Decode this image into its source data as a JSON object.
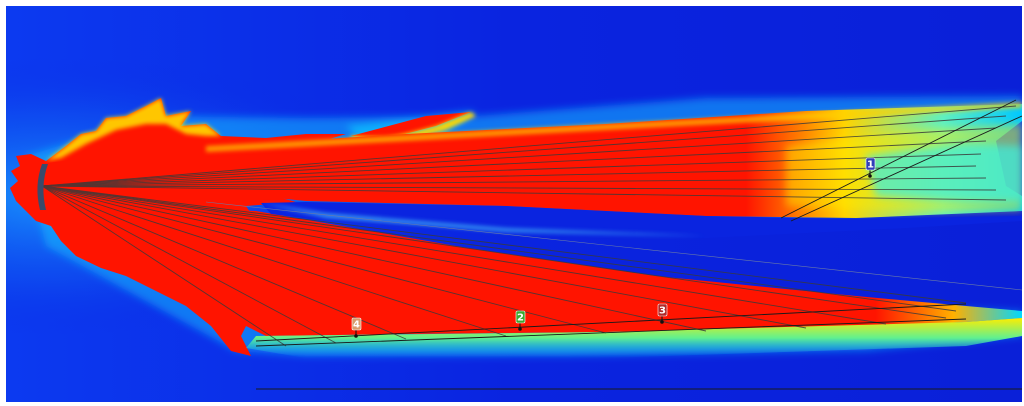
{
  "colors": {
    "background": "#0a22e0",
    "field_high": "#ff1400",
    "field_mid": "#ffee00",
    "field_low": "#00d8ff",
    "grid_line": "#333333",
    "measure_line": "#1a1a1a"
  },
  "markers": [
    {
      "id": "1",
      "label": "1",
      "color": "#2f3fb8"
    },
    {
      "id": "2",
      "label": "2",
      "color": "#3aa832"
    },
    {
      "id": "3",
      "label": "3",
      "color": "#b02a2a"
    },
    {
      "id": "4",
      "label": "4",
      "color": "#d99a6a"
    }
  ]
}
